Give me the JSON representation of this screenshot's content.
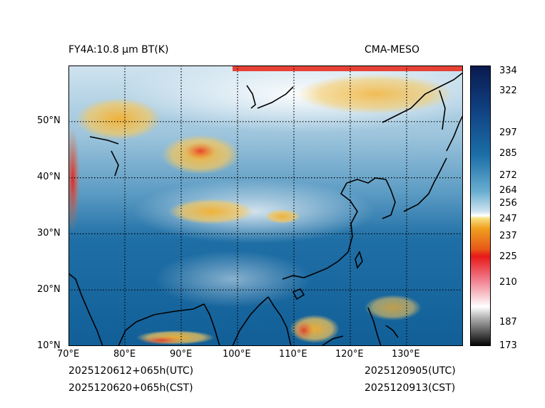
{
  "header": {
    "title_left": "FY4A:10.8 µm BT(K)",
    "title_right": "CMA-MESO"
  },
  "map": {
    "lat_labels": [
      "10°N",
      "20°N",
      "30°N",
      "40°N",
      "50°N"
    ],
    "lon_labels": [
      "70°E",
      "80°E",
      "90°E",
      "100°E",
      "110°E",
      "120°E",
      "130°E"
    ],
    "lat_range": [
      10,
      60
    ],
    "lon_range": [
      70,
      140
    ],
    "gridline_style": "dotted"
  },
  "colorbar": {
    "ticks": [
      "334",
      "322",
      "297",
      "285",
      "272",
      "264",
      "256",
      "247",
      "237",
      "225",
      "210",
      "187",
      "173"
    ],
    "range": [
      173,
      336
    ],
    "colors": {
      "cold_high": "#0a1a4e",
      "mid_blue": "#1b6fa8",
      "light": "#ffffff",
      "orange": "#f0a020",
      "red": "#e81818",
      "gray": "#8c8c8c",
      "black": "#000000"
    }
  },
  "footer": {
    "init_utc": "2025120612+065h(UTC)",
    "init_cst": "2025120620+065h(CST)",
    "valid_utc": "2025120905(UTC)",
    "valid_cst": "2025120913(CST)"
  }
}
